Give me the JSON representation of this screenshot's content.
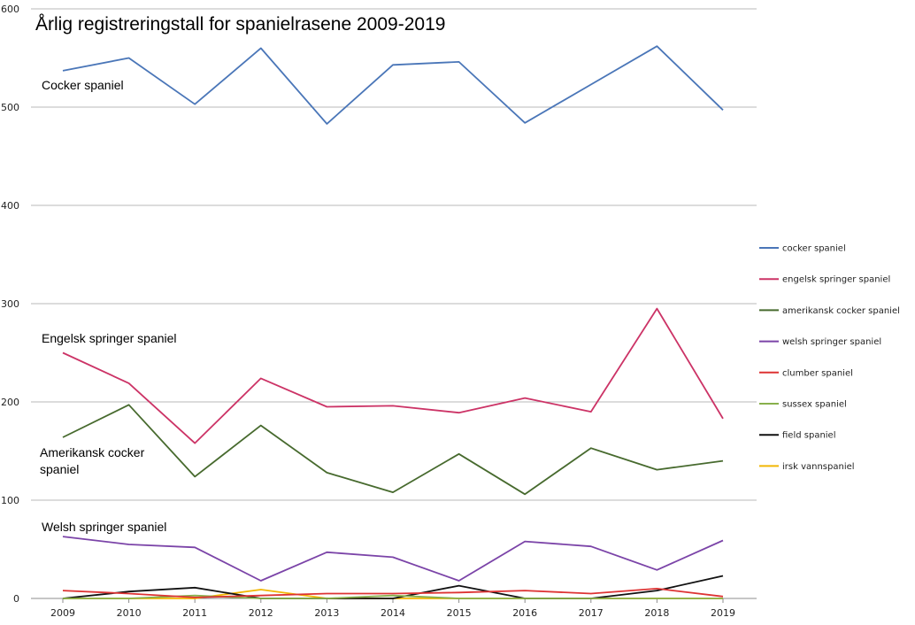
{
  "chart_data": {
    "type": "line",
    "title": "Årlig registreringstall for spanielrasene 2009-2019",
    "xlabel": "",
    "ylabel": "",
    "categories": [
      "2009",
      "2010",
      "2011",
      "2012",
      "2013",
      "2014",
      "2015",
      "2016",
      "2017",
      "2018",
      "2019"
    ],
    "ylim": [
      0,
      600
    ],
    "yticks": [
      0,
      100,
      200,
      300,
      400,
      500,
      600
    ],
    "grid": "horizontal",
    "legend_position": "right",
    "series": [
      {
        "name": "cocker spaniel",
        "color": "#4a76b8",
        "values": [
          537,
          550,
          503,
          560,
          483,
          543,
          546,
          484,
          523,
          562,
          497
        ]
      },
      {
        "name": "engelsk springer spaniel",
        "color": "#cc3366",
        "values": [
          250,
          219,
          158,
          224,
          195,
          196,
          189,
          204,
          190,
          295,
          183
        ]
      },
      {
        "name": "amerikansk cocker spaniel",
        "color": "#476a2e",
        "values": [
          164,
          197,
          124,
          176,
          128,
          108,
          147,
          106,
          153,
          131,
          140
        ]
      },
      {
        "name": "welsh springer spaniel",
        "color": "#7b44a8",
        "values": [
          63,
          55,
          52,
          18,
          47,
          42,
          18,
          58,
          53,
          29,
          59
        ]
      },
      {
        "name": "clumber spaniel",
        "color": "#dd3333",
        "values": [
          8,
          5,
          1,
          3,
          5,
          5,
          6,
          8,
          5,
          10,
          2
        ]
      },
      {
        "name": "sussex spaniel",
        "color": "#88b04b",
        "values": [
          0,
          0,
          3,
          0,
          0,
          3,
          0,
          0,
          0,
          0,
          0
        ]
      },
      {
        "name": "field spaniel",
        "color": "#111111",
        "values": [
          0,
          7,
          11,
          0,
          0,
          0,
          13,
          0,
          0,
          8,
          23
        ]
      },
      {
        "name": "irsk vannspaniel",
        "color": "#f2b705",
        "values": [
          0,
          0,
          0,
          9,
          0,
          0,
          0,
          0,
          0,
          0,
          0
        ]
      }
    ],
    "annotations": [
      {
        "text": "Cocker spaniel"
      },
      {
        "text": "Engelsk springer spaniel"
      },
      {
        "text": "Amerikansk cocker"
      },
      {
        "text": "spaniel"
      },
      {
        "text": "Welsh springer spaniel"
      }
    ]
  }
}
